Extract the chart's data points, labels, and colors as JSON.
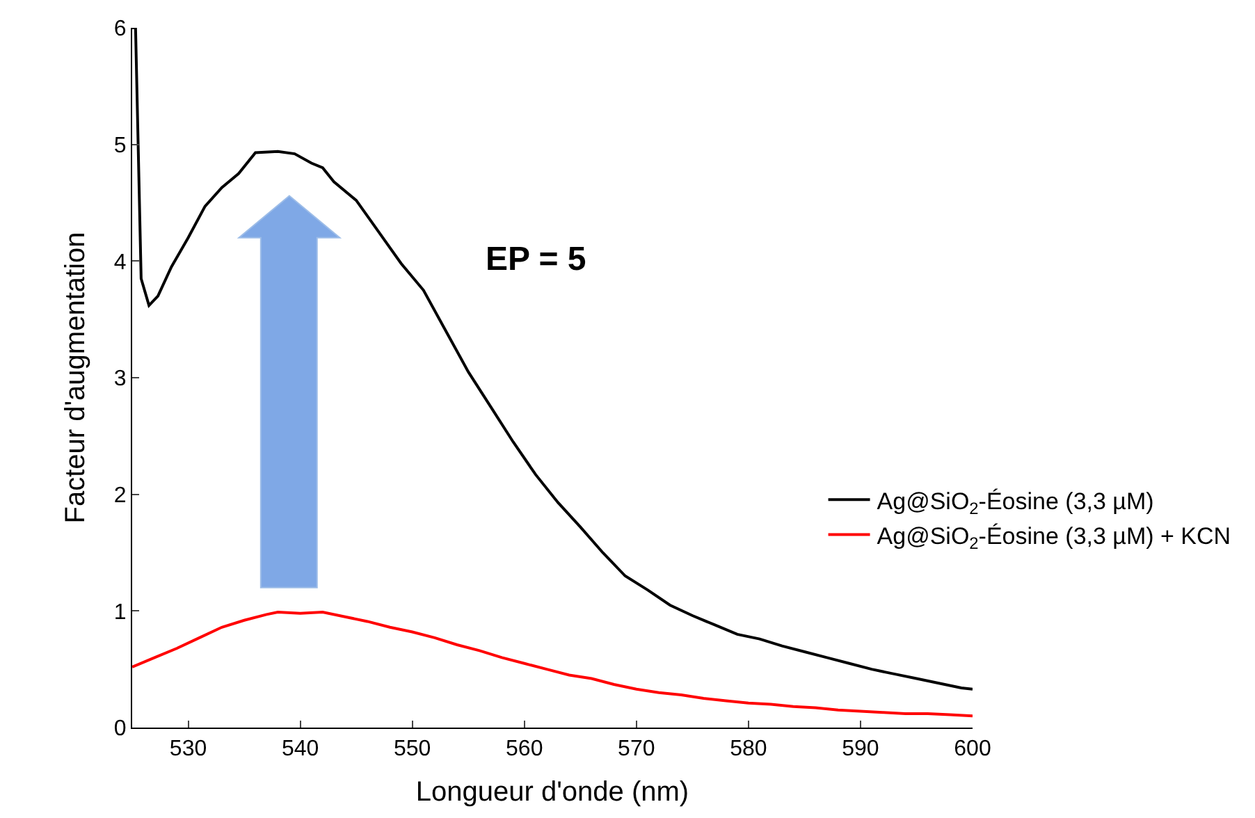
{
  "chart_data": {
    "type": "line",
    "xlabel": "Longueur d'onde (nm)",
    "ylabel": "Facteur d'augmentation",
    "annotations": [
      "EP = 5"
    ],
    "xlim": [
      525,
      600
    ],
    "xticks": [
      530,
      540,
      550,
      560,
      570,
      580,
      590,
      600
    ],
    "ylim": [
      0,
      6
    ],
    "yticks": [
      0,
      1,
      2,
      3,
      4,
      5,
      6
    ],
    "grid": false,
    "legend": "right",
    "marker": "none",
    "line_style": "solid",
    "series": [
      {
        "name": "Ag@SiO$_{2}$-Éosine (3,3 µM)",
        "color": "#000000",
        "x": [
          525,
          525.3,
          525.8,
          526.5,
          527.3,
          528.5,
          530,
          531.5,
          533,
          534.5,
          536,
          538,
          539.5,
          541,
          542,
          543,
          545,
          547,
          549,
          551,
          553,
          555,
          557,
          559,
          561,
          563,
          565,
          567,
          569,
          571,
          573,
          575,
          577,
          579,
          581,
          583,
          585,
          587,
          589,
          591,
          593,
          595,
          597,
          599,
          600
        ],
        "values": [
          6.0,
          6.0,
          3.85,
          3.62,
          3.7,
          3.95,
          4.2,
          4.47,
          4.63,
          4.75,
          4.93,
          4.94,
          4.92,
          4.84,
          4.8,
          4.68,
          4.52,
          4.25,
          3.98,
          3.75,
          3.4,
          3.05,
          2.75,
          2.45,
          2.17,
          1.93,
          1.72,
          1.5,
          1.3,
          1.18,
          1.05,
          0.96,
          0.88,
          0.8,
          0.76,
          0.7,
          0.65,
          0.6,
          0.55,
          0.5,
          0.46,
          0.42,
          0.38,
          0.34,
          0.33
        ]
      },
      {
        "name": "Ag@SiO$_{2}$-Éosine (3,3 µM) + KCN",
        "color": "#ff0000",
        "x": [
          525,
          527,
          529,
          531,
          533,
          535,
          537,
          538,
          540,
          542,
          544,
          546,
          548,
          550,
          552,
          554,
          556,
          558,
          560,
          562,
          564,
          566,
          568,
          570,
          572,
          574,
          576,
          578,
          580,
          582,
          584,
          586,
          588,
          590,
          592,
          594,
          596,
          598,
          600
        ],
        "values": [
          0.52,
          0.6,
          0.68,
          0.77,
          0.86,
          0.92,
          0.97,
          0.99,
          0.98,
          0.99,
          0.95,
          0.91,
          0.86,
          0.82,
          0.77,
          0.71,
          0.66,
          0.6,
          0.55,
          0.5,
          0.45,
          0.42,
          0.37,
          0.33,
          0.3,
          0.28,
          0.25,
          0.23,
          0.21,
          0.2,
          0.18,
          0.17,
          0.15,
          0.14,
          0.13,
          0.12,
          0.12,
          0.11,
          0.1
        ]
      }
    ]
  }
}
